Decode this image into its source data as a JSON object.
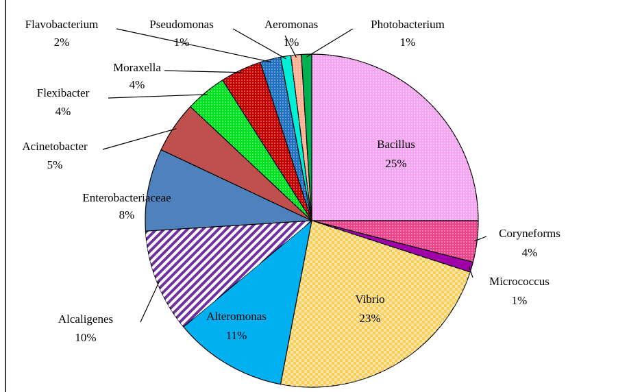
{
  "chart_data": {
    "type": "pie",
    "categories": [
      "Bacillus",
      "Coryneforms",
      "Micrococcus",
      "Vibrio",
      "Alteromonas",
      "Alcaligenes",
      "Enterobacteriaceae",
      "Acinetobacter",
      "Flexibacter",
      "Moraxella",
      "Flavobacterium",
      "Pseudomonas",
      "Aeromonas",
      "Photobacterium"
    ],
    "values": [
      25,
      4,
      1,
      23,
      11,
      10,
      8,
      5,
      4,
      4,
      2,
      1,
      1,
      1
    ],
    "value_labels": [
      "25%",
      "4%",
      "1%",
      "23%",
      "11%",
      "10%",
      "8%",
      "5%",
      "4%",
      "4%",
      "2%",
      "1%",
      "1%",
      "1%"
    ],
    "colors": [
      "#f4a6f0",
      "#e8458c",
      "#a000a8",
      "#f5cf5a",
      "#00b0f0",
      "#7030a0",
      "#4f81bd",
      "#c0504d",
      "#00e020",
      "#c00000",
      "#2070c0",
      "#00f0d8",
      "#ffb090",
      "#00b050"
    ]
  }
}
